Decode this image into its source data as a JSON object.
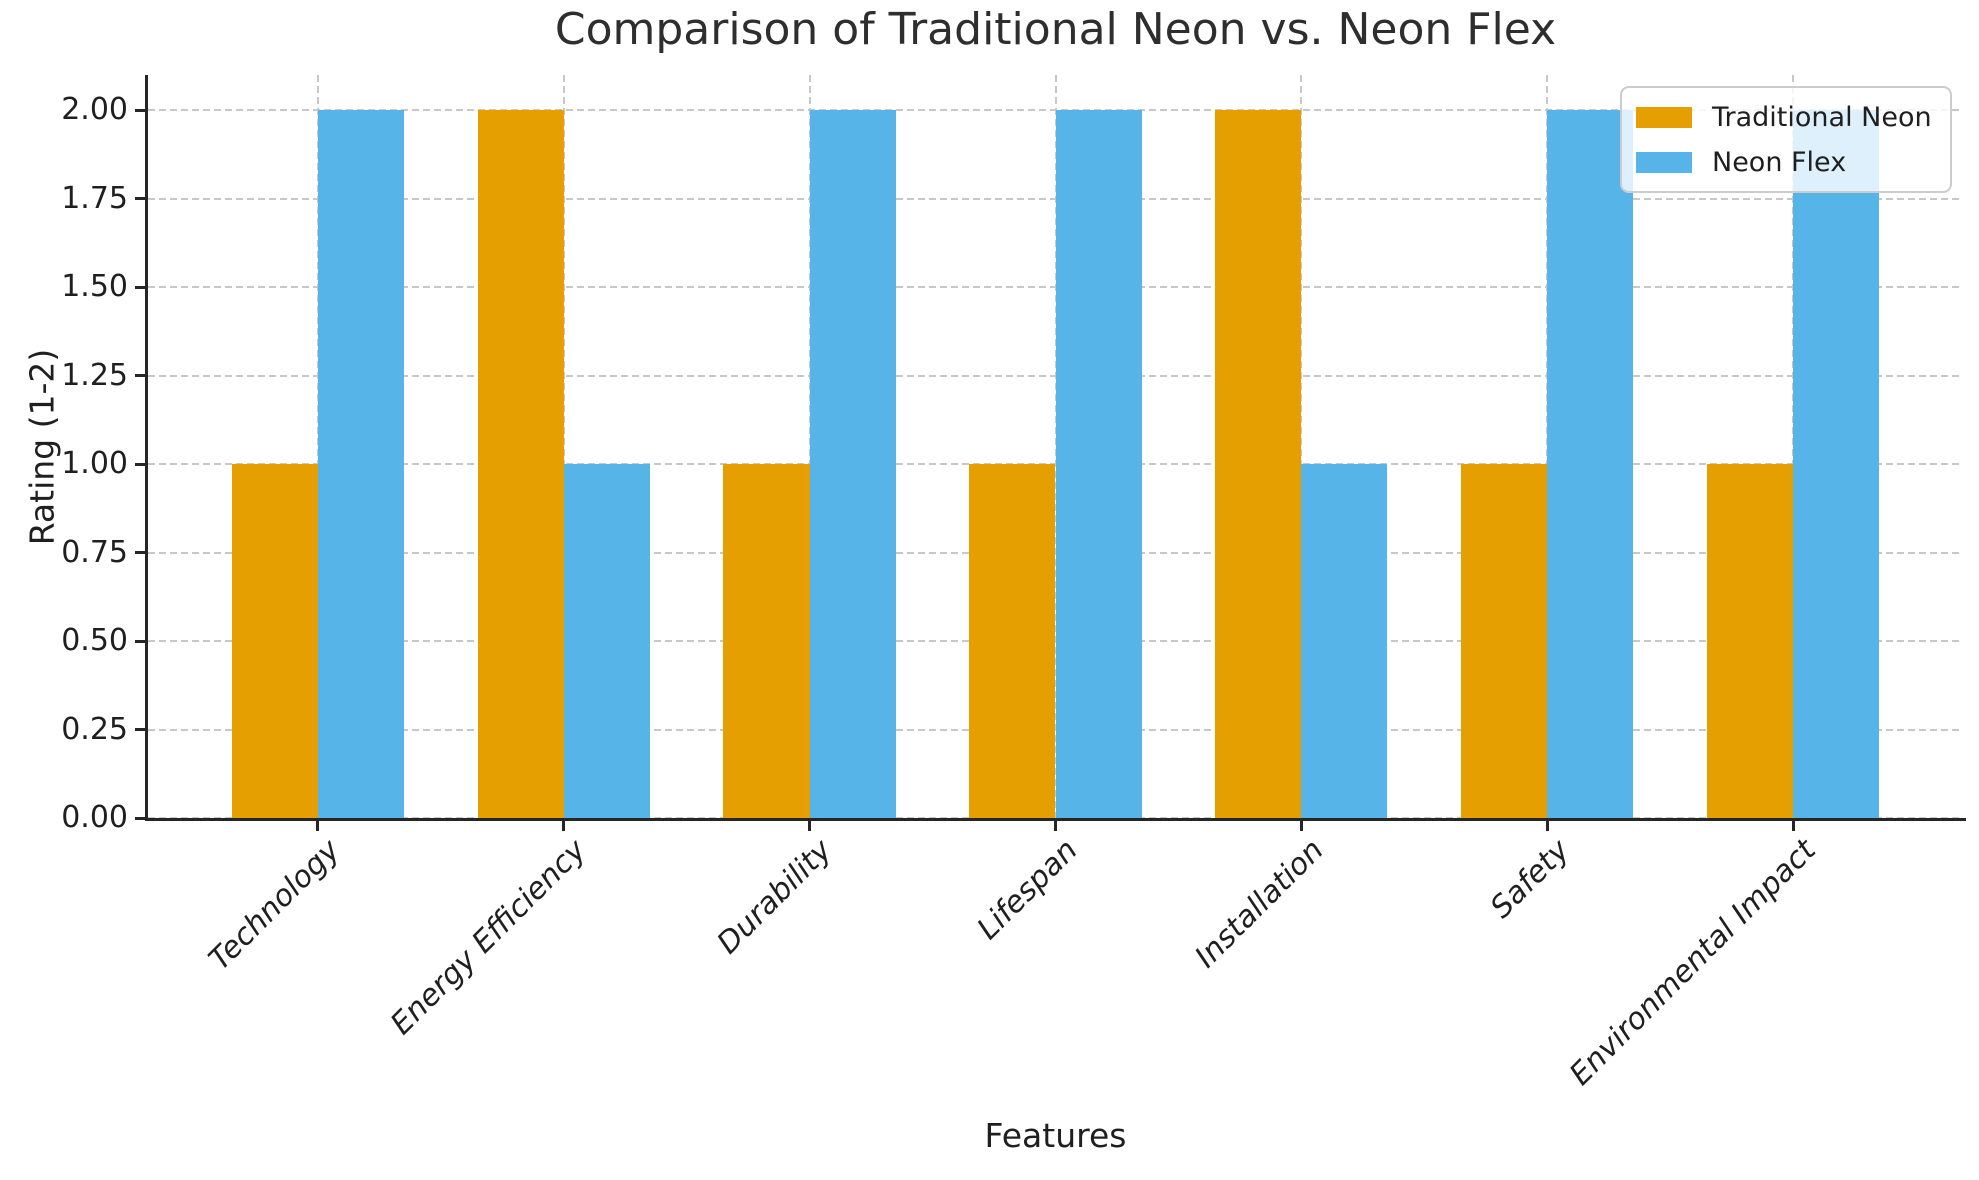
{
  "chart_data": {
    "type": "bar",
    "title": "Comparison of Traditional Neon vs. Neon Flex",
    "xlabel": "Features",
    "ylabel": "Rating (1-2)",
    "categories": [
      "Technology",
      "Energy Efficiency",
      "Durability",
      "Lifespan",
      "Installation",
      "Safety",
      "Environmental Impact"
    ],
    "series": [
      {
        "name": "Traditional Neon",
        "color": "#E69F00",
        "values": [
          1,
          2,
          1,
          1,
          2,
          1,
          1
        ]
      },
      {
        "name": "Neon Flex",
        "color": "#56B4E9",
        "values": [
          2,
          1,
          2,
          2,
          1,
          2,
          2
        ]
      }
    ],
    "y_tick_labels": [
      "0.00",
      "0.25",
      "0.50",
      "0.75",
      "1.00",
      "1.25",
      "1.50",
      "1.75",
      "2.00"
    ],
    "ylim": [
      0,
      2.1
    ],
    "bar_width_units": 0.35,
    "grid": "dashed, horizontal and vertical",
    "legend_position": "upper right",
    "x_tick_style": "italic, rotated 45deg"
  },
  "colors": {
    "traditional_neon": "#E69F00",
    "neon_flex": "#56B4E9",
    "grid": "#c8c8c8",
    "spine": "#262626",
    "text": "#1f1f1f",
    "title": "#2e2e2e",
    "legend_border": "#cccccc",
    "background": "#ffffff"
  }
}
